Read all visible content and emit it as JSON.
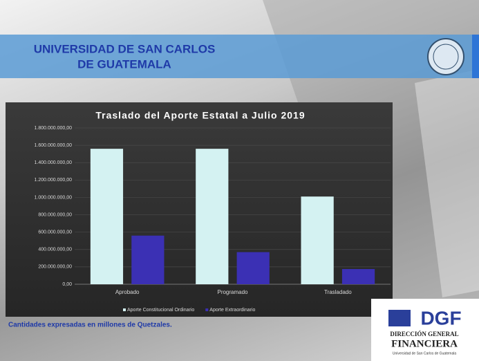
{
  "slide": {
    "title_line1": "UNIVERSIDAD DE SAN CARLOS",
    "title_line2": "DE GUATEMALA",
    "footnote": "Cantidades expresadas en millones  de Quetzales.",
    "logo": {
      "acronym": "DGF",
      "line1": "DIRECCIÓN GENERAL",
      "line2": "FINANCIERA",
      "line3": "Universidad de San Carlos de Guatemala"
    }
  },
  "chart_data": {
    "type": "bar",
    "title": "Traslado del Aporte Estatal a Julio 2019",
    "categories": [
      "Aprobado",
      "Programado",
      "Trasladado"
    ],
    "series": [
      {
        "name": "Aporte Constitucional Ordinario",
        "color": "#d4f2f2",
        "values": [
          1560000000,
          1560000000,
          1010000000
        ]
      },
      {
        "name": "Aporte Extraordinario",
        "color": "#3b30b4",
        "values": [
          560000000,
          370000000,
          175000000
        ]
      }
    ],
    "ylim": [
      0,
      1800000000
    ],
    "yticks": [
      {
        "value": 0,
        "label": "0,00"
      },
      {
        "value": 200000000,
        "label": "200.000.000,00"
      },
      {
        "value": 400000000,
        "label": "400.000.000,00"
      },
      {
        "value": 600000000,
        "label": "600.000.000,00"
      },
      {
        "value": 800000000,
        "label": "800.000.000,00"
      },
      {
        "value": 1000000000,
        "label": "1.000.000.000,00"
      },
      {
        "value": 1200000000,
        "label": "1.200.000.000,00"
      },
      {
        "value": 1400000000,
        "label": "1.400.000.000,00"
      },
      {
        "value": 1600000000,
        "label": "1.600.000.000,00"
      },
      {
        "value": 1800000000,
        "label": "1.800.000.000,00"
      }
    ],
    "grid": true,
    "legend": "bottom"
  }
}
